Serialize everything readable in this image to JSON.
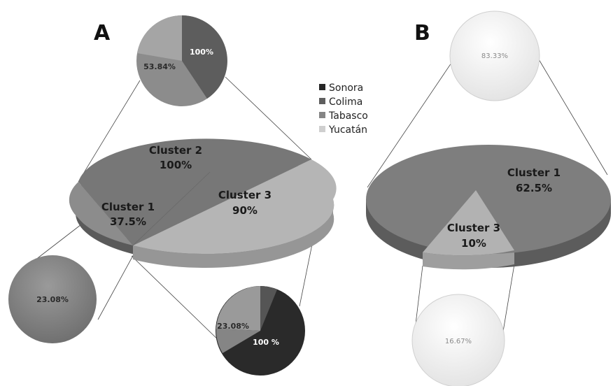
{
  "colors": {
    "sonora": "#262626",
    "colima": "#707070",
    "tabasco": "#8a8a8a",
    "yucatan": "#b8b8b8",
    "colima_panel_b": "#7c7c7c",
    "circle_b": "#f4f4f4"
  },
  "legend": {
    "items": [
      {
        "label": "Sonora",
        "color": "#262626"
      },
      {
        "label": "Colima",
        "color": "#5e5e5e"
      },
      {
        "label": "Tabasco",
        "color": "#858585"
      },
      {
        "label": "Yucatán",
        "color": "#cfcfcf"
      }
    ]
  },
  "chart_data": [
    {
      "type": "pie",
      "panel": "A",
      "slices": [
        {
          "name": "Cluster 2",
          "value": "100%"
        },
        {
          "name": "Cluster 3",
          "value": "90%"
        },
        {
          "name": "Cluster 1",
          "value": "37.5%"
        }
      ],
      "detail_pies": [
        {
          "of": "Cluster 2",
          "labels": [
            "100%",
            "53.84%"
          ]
        },
        {
          "of": "Cluster 1",
          "labels": [
            "23.08%"
          ]
        },
        {
          "of": "Cluster 3",
          "labels": [
            "23.08%",
            "100 %"
          ]
        }
      ]
    },
    {
      "type": "pie",
      "panel": "B",
      "slices": [
        {
          "name": "Cluster 1",
          "value": "62.5%"
        },
        {
          "name": "Cluster 3",
          "value": "10%"
        }
      ],
      "detail_pies": [
        {
          "of": "Cluster 1",
          "labels": [
            "83.33%"
          ]
        },
        {
          "of": "Cluster 3",
          "labels": [
            "16.67%"
          ]
        }
      ]
    }
  ]
}
